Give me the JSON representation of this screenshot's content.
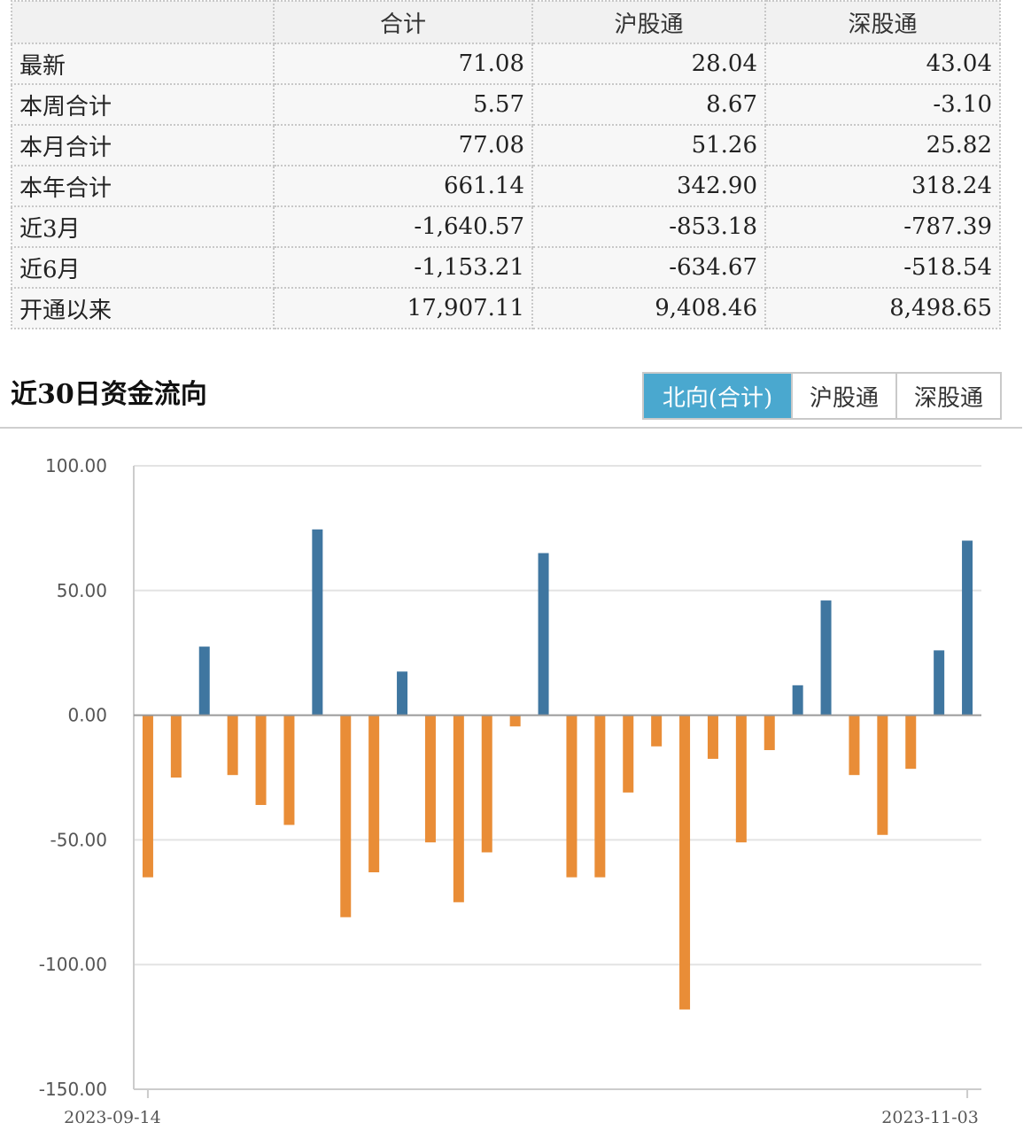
{
  "table": {
    "headers": [
      "",
      "合计",
      "沪股通",
      "深股通"
    ],
    "rows": [
      {
        "label": "最新",
        "total": "71.08",
        "sh": "28.04",
        "sz": "43.04"
      },
      {
        "label": "本周合计",
        "total": "5.57",
        "sh": "8.67",
        "sz": "-3.10"
      },
      {
        "label": "本月合计",
        "total": "77.08",
        "sh": "51.26",
        "sz": "25.82"
      },
      {
        "label": "本年合计",
        "total": "661.14",
        "sh": "342.90",
        "sz": "318.24"
      },
      {
        "label": "近3月",
        "total": "-1,640.57",
        "sh": "-853.18",
        "sz": "-787.39"
      },
      {
        "label": "近6月",
        "total": "-1,153.21",
        "sh": "-634.67",
        "sz": "-518.54"
      },
      {
        "label": "开通以来",
        "total": "17,907.11",
        "sh": "9,408.46",
        "sz": "8,498.65"
      }
    ]
  },
  "section": {
    "title": "近30日资金流向",
    "tabs": [
      {
        "label": "北向(合计)",
        "active": true
      },
      {
        "label": "沪股通",
        "active": false
      },
      {
        "label": "深股通",
        "active": false
      }
    ]
  },
  "colors": {
    "positive": "#3f76a0",
    "negative": "#e98d37",
    "tab_active": "#4aa8cf"
  },
  "chart_data": {
    "type": "bar",
    "ylim": [
      -150,
      100
    ],
    "yticks": [
      "100.00",
      "50.00",
      "0.00",
      "-50.00",
      "-100.00",
      "-150.00"
    ],
    "ytick_values": [
      100,
      50,
      0,
      -50,
      -100,
      -150
    ],
    "x_first_label": "2023-09-14",
    "x_last_label": "2023-11-03",
    "grid": true,
    "values": [
      -65,
      -25,
      27.5,
      -24,
      -36,
      -44,
      74.5,
      -81,
      -63,
      17.5,
      -51,
      -75,
      -55,
      -4.5,
      65,
      -65,
      -65,
      -31,
      -12.5,
      -118,
      -17.5,
      -51,
      -14,
      12,
      46,
      -24,
      -48,
      -21.5,
      26,
      70
    ]
  }
}
